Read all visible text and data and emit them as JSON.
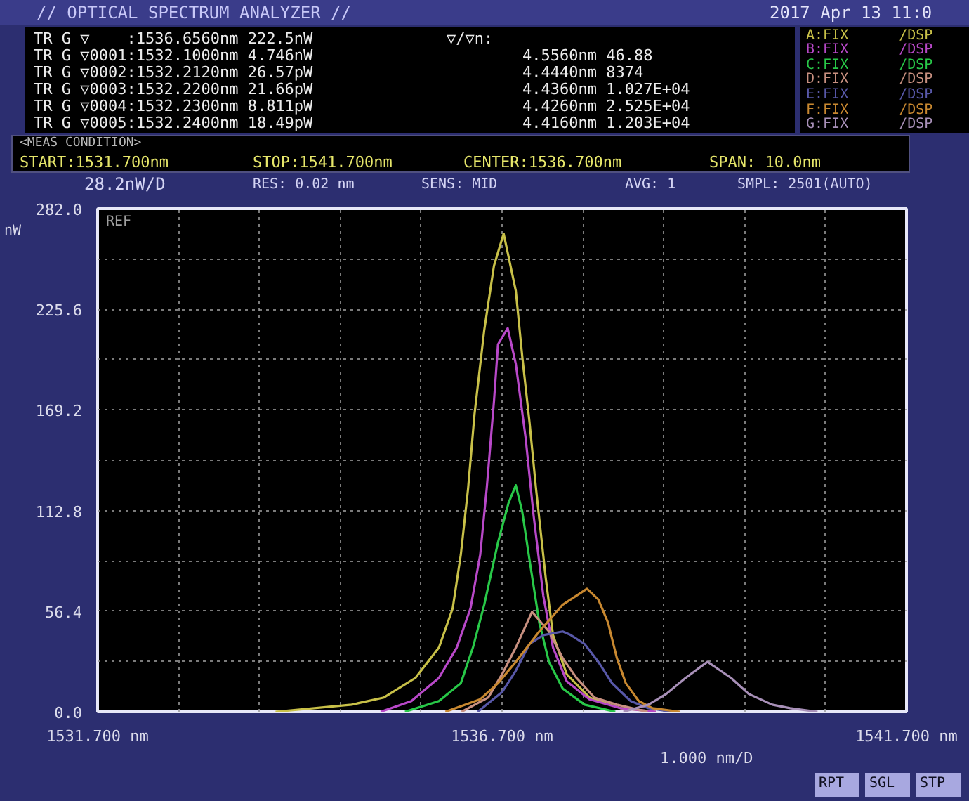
{
  "chart_data": {
    "type": "line",
    "title": "// OPTICAL SPECTRUM ANALYZER //",
    "ylabel": "nW",
    "xlim": [
      1531.7,
      1541.7
    ],
    "xticks": [
      {
        "value": 1531.7,
        "label": "1531.700 nm"
      },
      {
        "value": 1532.7,
        "label": null
      },
      {
        "value": 1533.7,
        "label": null
      },
      {
        "value": 1534.7,
        "label": null
      },
      {
        "value": 1535.7,
        "label": null
      },
      {
        "value": 1536.7,
        "label": "1536.700 nm"
      },
      {
        "value": 1537.7,
        "label": null
      },
      {
        "value": 1538.7,
        "label": null
      },
      {
        "value": 1539.7,
        "label": null
      },
      {
        "value": 1540.7,
        "label": null
      },
      {
        "value": 1541.7,
        "label": "1541.700 nm"
      }
    ],
    "ylim": [
      0,
      282
    ],
    "yticks": [
      {
        "value": 0,
        "label": "0.0"
      },
      {
        "value": 28.2,
        "label": null
      },
      56.4,
      {
        "value": 84.6,
        "label": null
      },
      112.8,
      {
        "value": 141,
        "label": null
      },
      169.2,
      {
        "value": 197.4,
        "label": null
      },
      225.6,
      {
        "value": 253.8,
        "label": null
      },
      {
        "value": 282,
        "label": "282.0"
      }
    ],
    "grid": true,
    "legend": "top right",
    "series": [
      {
        "name": "A:FIX /DSP",
        "color": "#c8c048",
        "x": [
          1533.9,
          1534.84,
          1535.24,
          1535.63,
          1535.92,
          1536.09,
          1536.19,
          1536.28,
          1536.36,
          1536.48,
          1536.6,
          1536.72,
          1536.87,
          1536.95,
          1537.04,
          1537.12,
          1537.24,
          1537.33,
          1537.5,
          1537.78,
          1538.17,
          1538.6
        ],
        "values": [
          0,
          4,
          8,
          19,
          36,
          58,
          88,
          125,
          167,
          214,
          250,
          268,
          236,
          199,
          162,
          125,
          75,
          43,
          21,
          8,
          2,
          0
        ]
      },
      {
        "name": "B:FIX /DSP",
        "color": "#b848c8",
        "x": [
          1535.2,
          1535.58,
          1535.92,
          1536.14,
          1536.31,
          1536.43,
          1536.51,
          1536.6,
          1536.65,
          1536.77,
          1536.87,
          1536.99,
          1537.09,
          1537.21,
          1537.33,
          1537.5,
          1537.78,
          1538.17,
          1538.6
        ],
        "values": [
          0,
          6,
          19,
          36,
          58,
          88,
          125,
          174,
          206,
          215,
          195,
          154,
          110,
          65,
          36,
          17,
          7,
          2,
          0
        ]
      },
      {
        "name": "C:FIX /DSP",
        "color": "#28c848",
        "x": [
          1535.5,
          1535.92,
          1536.19,
          1536.34,
          1536.48,
          1536.65,
          1536.78,
          1536.87,
          1536.95,
          1537.04,
          1537.16,
          1537.28,
          1537.45,
          1537.72,
          1538.1
        ],
        "values": [
          0,
          6,
          16,
          36,
          60,
          95,
          117,
          127,
          112,
          85,
          50,
          28,
          13,
          4,
          0
        ]
      },
      {
        "name": "D:FIX /DSP",
        "color": "#c89080",
        "x": [
          1536.2,
          1536.53,
          1536.7,
          1536.87,
          1537.07,
          1537.28,
          1537.45,
          1537.62,
          1537.84,
          1538.12,
          1538.5
        ],
        "values": [
          0,
          8,
          21,
          36,
          56,
          45,
          30,
          19,
          8,
          4,
          0
        ]
      },
      {
        "name": "E:FIX /DSP",
        "color": "#5858a8",
        "x": [
          1536.4,
          1536.7,
          1536.87,
          1537.04,
          1537.21,
          1537.45,
          1537.55,
          1537.72,
          1537.89,
          1538.06,
          1538.29,
          1538.51,
          1538.8
        ],
        "values": [
          0,
          11,
          23,
          38,
          43,
          45,
          43,
          38,
          28,
          16,
          6,
          2,
          0
        ]
      },
      {
        "name": "F:FIX /DSP",
        "color": "#c88830",
        "x": [
          1536.0,
          1536.43,
          1536.65,
          1536.87,
          1537.16,
          1537.45,
          1537.75,
          1537.89,
          1538.01,
          1538.12,
          1538.23,
          1538.39,
          1538.56,
          1538.9
        ],
        "values": [
          0,
          7,
          16,
          28,
          45,
          60,
          69,
          63,
          50,
          30,
          16,
          6,
          2,
          0
        ]
      },
      {
        "name": "G:FIX /DSP",
        "color": "#a890b8",
        "x": [
          1538.2,
          1538.51,
          1538.73,
          1538.97,
          1539.24,
          1539.53,
          1539.75,
          1540.04,
          1540.26,
          1540.6
        ],
        "values": [
          0,
          4,
          10,
          19,
          28,
          19,
          10,
          4,
          2,
          0
        ]
      }
    ],
    "annotations": [
      "2017 Apr 13 11:0",
      "TR G ▽    :1536.6560nm 222.5nW",
      "TR G ▽0001:1532.1000nm 4.746nW",
      "TR G ▽0002:1532.2120nm 26.57pW",
      "TR G ▽0003:1532.2200nm 21.66pW",
      "TR G ▽0004:1532.2300nm 8.811pW",
      "TR G ▽0005:1532.2400nm 18.49pW",
      "▽/▽n:",
      "4.5560nm 46.88",
      "4.4440nm 8374",
      "4.4360nm 1.027E+04",
      "4.4260nm 2.525E+04",
      "4.4160nm 1.203E+04",
      "<MEAS CONDITION>",
      "START:1531.700nm",
      "STOP:1541.700nm",
      "CENTER:1536.700nm",
      "SPAN: 10.0nm",
      "28.2nW/D",
      "RES: 0.02 nm",
      "SENS: MID",
      "AVG: 1",
      "SMPL: 2501(AUTO)",
      "REF",
      "1.000 nm/D",
      "RPT",
      "SGL",
      "STP"
    ]
  }
}
